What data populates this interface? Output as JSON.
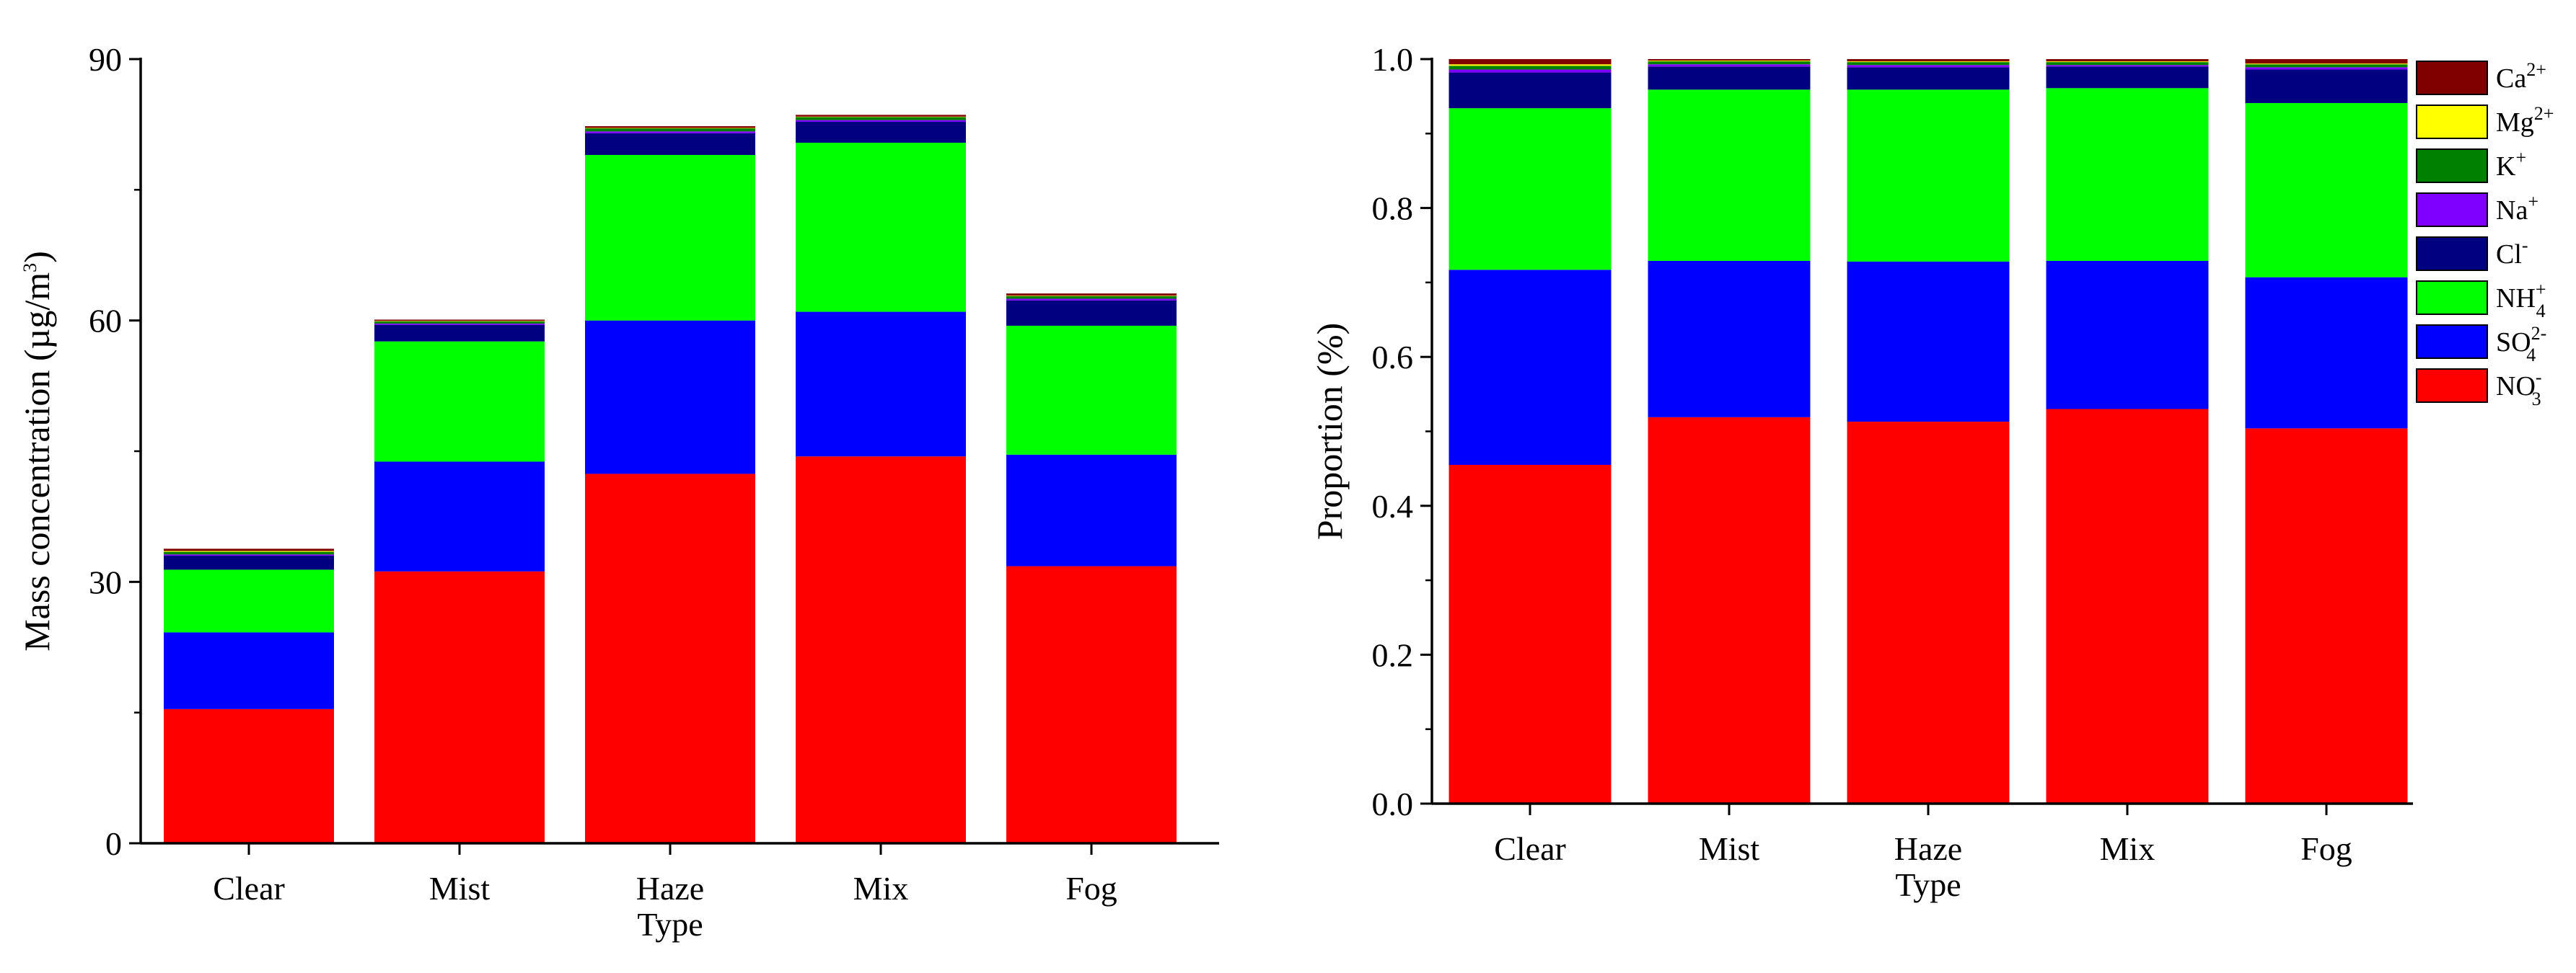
{
  "colors": {
    "NO3": "#ff0000",
    "SO4": "#0000ff",
    "NH4": "#00ff00",
    "Cl": "#000080",
    "Na": "#8000ff",
    "K": "#008000",
    "Mg": "#ffff00",
    "Ca": "#800000"
  },
  "chart_data": [
    {
      "type": "bar",
      "stacked": true,
      "title": "",
      "xlabel": "Type",
      "ylabel": "Mass concentration (µg/m³)",
      "ylabel_parts": {
        "main": "Mass concentration (µg/m",
        "sup": "3",
        "tail": ")"
      },
      "ylim": [
        0,
        90
      ],
      "yticks": [
        0,
        30,
        60,
        90
      ],
      "categories": [
        "Clear",
        "Mist",
        "Haze",
        "Mix",
        "Fog"
      ],
      "series": [
        {
          "name": "NO3-",
          "key": "NO3",
          "values": [
            15.4,
            31.2,
            42.4,
            44.4,
            31.8
          ]
        },
        {
          "name": "SO42-",
          "key": "SO4",
          "values": [
            8.8,
            12.6,
            17.6,
            16.6,
            12.8
          ]
        },
        {
          "name": "NH4+",
          "key": "NH4",
          "values": [
            7.2,
            13.8,
            19.0,
            19.4,
            14.8
          ]
        },
        {
          "name": "Cl-",
          "key": "Cl",
          "values": [
            1.6,
            1.9,
            2.5,
            2.4,
            2.9
          ]
        },
        {
          "name": "Na+",
          "key": "Na",
          "values": [
            0.15,
            0.15,
            0.2,
            0.2,
            0.2
          ]
        },
        {
          "name": "K+",
          "key": "K",
          "values": [
            0.3,
            0.25,
            0.35,
            0.35,
            0.3
          ]
        },
        {
          "name": "Mg2+",
          "key": "Mg",
          "values": [
            0.1,
            0.05,
            0.05,
            0.05,
            0.05
          ]
        },
        {
          "name": "Ca2+",
          "key": "Ca",
          "values": [
            0.25,
            0.15,
            0.2,
            0.2,
            0.25
          ]
        }
      ]
    },
    {
      "type": "bar",
      "stacked": true,
      "title": "",
      "xlabel": "Type",
      "ylabel": "Proportion (%)",
      "ylim": [
        0,
        1.0
      ],
      "yticks": [
        0.0,
        0.2,
        0.4,
        0.6,
        0.8,
        1.0
      ],
      "ytick_labels": [
        "0.0",
        "0.2",
        "0.4",
        "0.6",
        "0.8",
        "1.0"
      ],
      "categories": [
        "Clear",
        "Mist",
        "Haze",
        "Mix",
        "Fog"
      ],
      "legend_position": "right",
      "series": [
        {
          "name": "NO3-",
          "key": "NO3",
          "values": [
            0.455,
            0.519,
            0.513,
            0.53,
            0.504
          ]
        },
        {
          "name": "SO42-",
          "key": "SO4",
          "values": [
            0.262,
            0.21,
            0.215,
            0.199,
            0.203
          ]
        },
        {
          "name": "NH4+",
          "key": "NH4",
          "values": [
            0.217,
            0.23,
            0.231,
            0.232,
            0.234
          ]
        },
        {
          "name": "Cl-",
          "key": "Cl",
          "values": [
            0.048,
            0.031,
            0.03,
            0.029,
            0.045
          ]
        },
        {
          "name": "Na+",
          "key": "Na",
          "values": [
            0.004,
            0.003,
            0.003,
            0.002,
            0.003
          ]
        },
        {
          "name": "K+",
          "key": "K",
          "values": [
            0.005,
            0.004,
            0.004,
            0.004,
            0.004
          ]
        },
        {
          "name": "Mg2+",
          "key": "Mg",
          "values": [
            0.002,
            0.001,
            0.001,
            0.001,
            0.001
          ]
        },
        {
          "name": "Ca2+",
          "key": "Ca",
          "values": [
            0.007,
            0.002,
            0.003,
            0.003,
            0.006
          ]
        }
      ],
      "legend": [
        {
          "key": "Ca",
          "base": "Ca",
          "sup": "2+",
          "sub": ""
        },
        {
          "key": "Mg",
          "base": "Mg",
          "sup": "2+",
          "sub": ""
        },
        {
          "key": "K",
          "base": "K",
          "sup": "+",
          "sub": ""
        },
        {
          "key": "Na",
          "base": "Na",
          "sup": "+",
          "sub": ""
        },
        {
          "key": "Cl",
          "base": "Cl",
          "sup": "-",
          "sub": ""
        },
        {
          "key": "NH4",
          "base": "NH",
          "sup": "+",
          "sub": "4"
        },
        {
          "key": "SO4",
          "base": "SO",
          "sup": "2-",
          "sub": "4"
        },
        {
          "key": "NO3",
          "base": "NO",
          "sup": "-",
          "sub": "3"
        }
      ]
    }
  ]
}
